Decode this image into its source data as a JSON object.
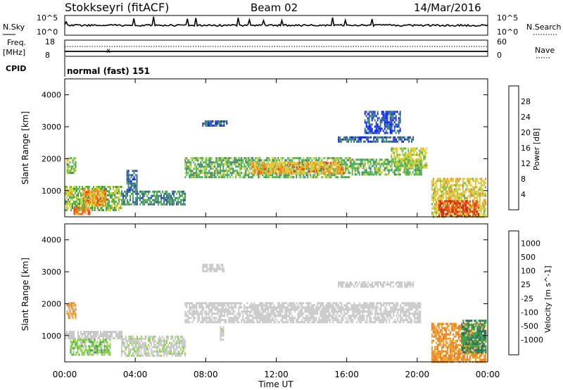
{
  "header": {
    "station": "Stokkseyri (fitACF)",
    "beam": "Beam 02",
    "date": "14/Mar/2016"
  },
  "status_panels": {
    "nsky_label": "N.Sky",
    "nsky_ticks": [
      "10^5",
      "10^0"
    ],
    "nsearch_label": "N.Search",
    "freq_label": "Freq.",
    "freq_unit": "[MHz]",
    "freq_ticks": [
      "18",
      "8"
    ],
    "nave_label": "Nave",
    "nave_ticks": [
      "60",
      "0"
    ],
    "cpid_label": "CPID",
    "cpid_value": "normal (fast) 151"
  },
  "colors": {
    "power": [
      "#0a1aff",
      "#2b4ea8",
      "#3f8a6a",
      "#50b84a",
      "#c8d23a",
      "#f1c232",
      "#f08a1c",
      "#e84a1a",
      "#d81e12"
    ],
    "velocity": [
      "#1e2dbd",
      "#2c6f5c",
      "#3fa24a",
      "#8ed04a",
      "#c8c8c8",
      "#c8c8c8",
      "#f0a020",
      "#ef7a18",
      "#e4461a",
      "#d21818"
    ]
  },
  "chart_data": [
    {
      "type": "heatmap",
      "name": "power",
      "xlabel": "",
      "ylabel": "Slant Range [km]",
      "xlim": [
        0,
        24
      ],
      "ylim": [
        180,
        4500
      ],
      "x_ticks": [
        "00:00",
        "04:00",
        "08:00",
        "12:00",
        "16:00",
        "20:00",
        "00:00"
      ],
      "y_ticks": [
        "1000",
        "2000",
        "3000",
        "4000"
      ],
      "colorbar": {
        "label": "Power [dB]",
        "ticks": [
          "4",
          "8",
          "12",
          "16",
          "20",
          "24",
          "28"
        ],
        "range": [
          0,
          32
        ]
      },
      "regions": [
        {
          "t": [
            0.1,
            0.6
          ],
          "r": [
            1550,
            2050
          ],
          "level": 14
        },
        {
          "t": [
            0.0,
            3.2
          ],
          "r": [
            380,
            1150
          ],
          "level": 14
        },
        {
          "t": [
            1.0,
            2.3
          ],
          "r": [
            550,
            1050
          ],
          "level": 22
        },
        {
          "t": [
            0.5,
            1.4
          ],
          "r": [
            250,
            500
          ],
          "level": 24
        },
        {
          "t": [
            3.2,
            6.8
          ],
          "r": [
            600,
            1000
          ],
          "level": 9
        },
        {
          "t": [
            3.5,
            4.1
          ],
          "r": [
            1000,
            1650
          ],
          "level": 7
        },
        {
          "t": [
            6.8,
            16.2
          ],
          "r": [
            1400,
            2050
          ],
          "level": 12
        },
        {
          "t": [
            10.5,
            15.8
          ],
          "r": [
            1550,
            1900
          ],
          "level": 21
        },
        {
          "t": [
            16.2,
            20.2
          ],
          "r": [
            1500,
            2000
          ],
          "level": 12
        },
        {
          "t": [
            18.5,
            20.5
          ],
          "r": [
            1700,
            2350
          ],
          "level": 16
        },
        {
          "t": [
            7.8,
            9.2
          ],
          "r": [
            3050,
            3200
          ],
          "level": 6
        },
        {
          "t": [
            15.5,
            19.8
          ],
          "r": [
            2550,
            2700
          ],
          "level": 6
        },
        {
          "t": [
            17.0,
            19.0
          ],
          "r": [
            2800,
            3500
          ],
          "level": 5
        },
        {
          "t": [
            20.8,
            23.9
          ],
          "r": [
            200,
            1400
          ],
          "level": 18
        },
        {
          "t": [
            21.2,
            23.5
          ],
          "r": [
            200,
            700
          ],
          "level": 27
        },
        {
          "t": [
            0.0,
            0.4
          ],
          "r": [
            900,
            1100
          ],
          "level": 18
        }
      ]
    },
    {
      "type": "heatmap",
      "name": "velocity",
      "xlabel": "Time UT",
      "ylabel": "Slant Range [km]",
      "xlim": [
        0,
        24
      ],
      "ylim": [
        180,
        4500
      ],
      "x_ticks": [
        "00:00",
        "04:00",
        "08:00",
        "12:00",
        "16:00",
        "20:00",
        "00:00"
      ],
      "y_ticks": [
        "1000",
        "2000",
        "3000",
        "4000"
      ],
      "colorbar": {
        "label": "Velocity [m s^-1]",
        "ticks": [
          "1000",
          "500",
          "100",
          "25",
          "-25",
          "-100",
          "-500",
          "-1000"
        ],
        "range": [
          -1000,
          1000
        ]
      },
      "regions": [
        {
          "t": [
            0.1,
            0.6
          ],
          "r": [
            1550,
            2050
          ],
          "level": -300
        },
        {
          "t": [
            0.0,
            3.2
          ],
          "r": [
            900,
            1150
          ],
          "level": 0
        },
        {
          "t": [
            0.3,
            2.6
          ],
          "r": [
            400,
            900
          ],
          "level": 300
        },
        {
          "t": [
            3.2,
            6.8
          ],
          "r": [
            400,
            1000
          ],
          "level": 120
        },
        {
          "t": [
            6.8,
            20.2
          ],
          "r": [
            1450,
            2050
          ],
          "level": 0
        },
        {
          "t": [
            7.8,
            9.0
          ],
          "r": [
            3050,
            3250
          ],
          "level": 0
        },
        {
          "t": [
            15.5,
            19.8
          ],
          "r": [
            2550,
            2700
          ],
          "level": 0
        },
        {
          "t": [
            20.8,
            23.9
          ],
          "r": [
            200,
            1400
          ],
          "level": -400
        },
        {
          "t": [
            22.5,
            23.9
          ],
          "r": [
            500,
            1500
          ],
          "level": 600
        },
        {
          "t": [
            8.8,
            9.0
          ],
          "r": [
            900,
            1300
          ],
          "level": 120
        }
      ]
    }
  ]
}
